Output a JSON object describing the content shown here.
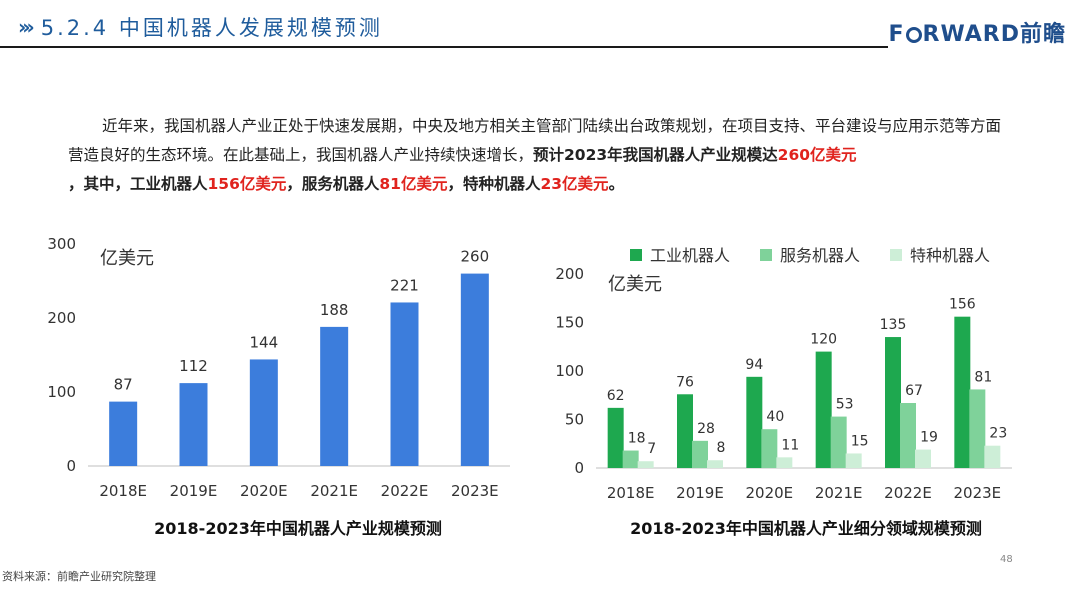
{
  "header": {
    "section_title": "5.2.4  中国机器人发展规模预测",
    "logo": "FORWARD前瞻"
  },
  "intro": {
    "p1": "近年来，我国机器人产业正处于快速发展期，中央及地方相关主管部门陆续出台政策规划，在项目支持、平台建设与应用示范等方面营造良好的生态环境。在此基础上，我国机器人产业持续快速增长，",
    "p2_bold": "预计2023年我国机器人产业规模达",
    "p2_red": "260亿美元",
    "p3_bold": "，其中，工业机器人",
    "p3_red1": "156亿美元",
    "p3_b2": "，服务机器人",
    "p3_red2": "81亿美元",
    "p3_b3": "，特种机器人",
    "p3_red3": "23亿美元",
    "p3_end": "。"
  },
  "chart_data": [
    {
      "type": "bar",
      "title": "2018-2023年中国机器人产业规模预测",
      "unit_label": "亿美元",
      "categories": [
        "2018E",
        "2019E",
        "2020E",
        "2021E",
        "2022E",
        "2023E"
      ],
      "values": [
        87,
        112,
        144,
        188,
        221,
        260
      ],
      "ylim": [
        0,
        300
      ],
      "yticks": [
        0,
        100,
        200,
        300
      ],
      "color": "#3c7ddc"
    },
    {
      "type": "bar",
      "title": "2018-2023年中国机器人产业细分领域规模预测",
      "unit_label": "亿美元",
      "categories": [
        "2018E",
        "2019E",
        "2020E",
        "2021E",
        "2022E",
        "2023E"
      ],
      "series": [
        {
          "name": "工业机器人",
          "values": [
            62,
            76,
            94,
            120,
            135,
            156
          ],
          "color": "#1ea84f"
        },
        {
          "name": "服务机器人",
          "values": [
            18,
            28,
            40,
            53,
            67,
            81
          ],
          "color": "#7fd29a"
        },
        {
          "name": "特种机器人",
          "values": [
            7,
            8,
            11,
            15,
            19,
            23
          ],
          "color": "#cdeed7"
        }
      ],
      "ylim": [
        0,
        200
      ],
      "yticks": [
        0,
        50,
        100,
        150,
        200
      ],
      "legend_position": "top"
    }
  ],
  "footer": {
    "source": "资料来源：前瞻产业研究院整理",
    "page_number": "48"
  }
}
